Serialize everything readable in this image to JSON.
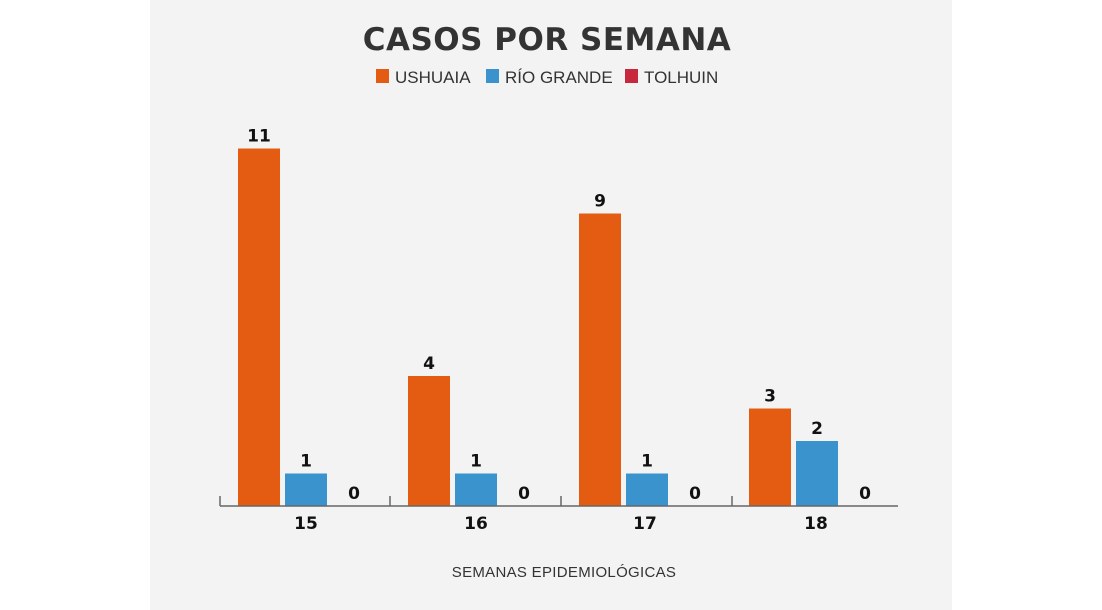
{
  "chart_data": {
    "type": "bar",
    "title": "CASOS POR SEMANA",
    "xlabel": "SEMANAS EPIDEMIOLÓGICAS",
    "ylabel": "",
    "categories": [
      "15",
      "16",
      "17",
      "18"
    ],
    "series": [
      {
        "name": "USHUAIA",
        "color": "#e35c12",
        "values": [
          11,
          4,
          9,
          3
        ]
      },
      {
        "name": "RÍO GRANDE",
        "color": "#3a93cc",
        "values": [
          1,
          1,
          1,
          2
        ]
      },
      {
        "name": "TOLHUIN",
        "color": "#c8283e",
        "values": [
          0,
          0,
          0,
          0
        ]
      }
    ],
    "ylim": [
      0,
      11
    ],
    "grid": false,
    "legend_position": "top-center"
  }
}
